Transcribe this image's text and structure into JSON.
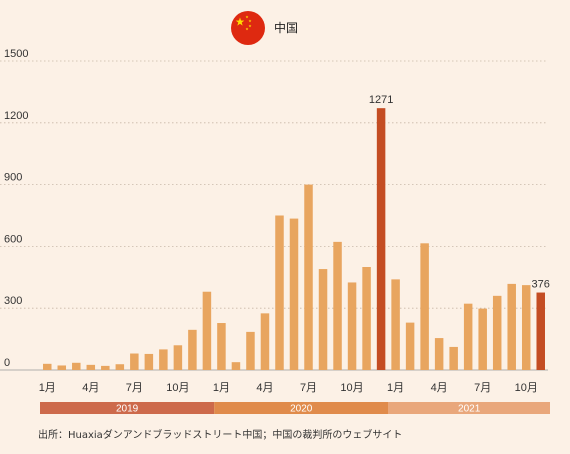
{
  "chart_data": {
    "type": "bar",
    "title": "中国",
    "ylim": [
      0,
      1500
    ],
    "yticks": [
      "0",
      "300",
      "600",
      "900",
      "1200",
      "1500"
    ],
    "x_tick_labels": [
      {
        "index": 0,
        "label": "1月"
      },
      {
        "index": 3,
        "label": "4月"
      },
      {
        "index": 6,
        "label": "7月"
      },
      {
        "index": 9,
        "label": "10月"
      },
      {
        "index": 12,
        "label": "1月"
      },
      {
        "index": 15,
        "label": "4月"
      },
      {
        "index": 18,
        "label": "7月"
      },
      {
        "index": 21,
        "label": "10月"
      },
      {
        "index": 24,
        "label": "1月"
      },
      {
        "index": 27,
        "label": "4月"
      },
      {
        "index": 30,
        "label": "7月"
      },
      {
        "index": 33,
        "label": "10月"
      }
    ],
    "values": [
      30,
      22,
      35,
      25,
      20,
      28,
      80,
      78,
      100,
      120,
      195,
      380,
      228,
      38,
      185,
      275,
      750,
      735,
      900,
      490,
      622,
      425,
      500,
      1271,
      440,
      230,
      615,
      155,
      112,
      322,
      298,
      360,
      418,
      412,
      376
    ],
    "highlight": [
      {
        "index": 23,
        "label": "1271"
      },
      {
        "index": 34,
        "label": "376"
      }
    ],
    "years": [
      "2019",
      "2020",
      "2021"
    ],
    "grid": true
  },
  "source": "出所：Huaxiaダンアンドブラッドストリート中国；中国の裁判所のウェブサイト",
  "colors": {
    "bar": "#e8a55f",
    "highlight": "#c44d23",
    "year_bands": [
      "#cd6a4b",
      "#e08b4b",
      "#e9a77b"
    ],
    "grid": "#c8b8a8",
    "flag": "#de2910",
    "star": "#ffde00"
  },
  "icons": {
    "flag": "china-flag-icon"
  }
}
